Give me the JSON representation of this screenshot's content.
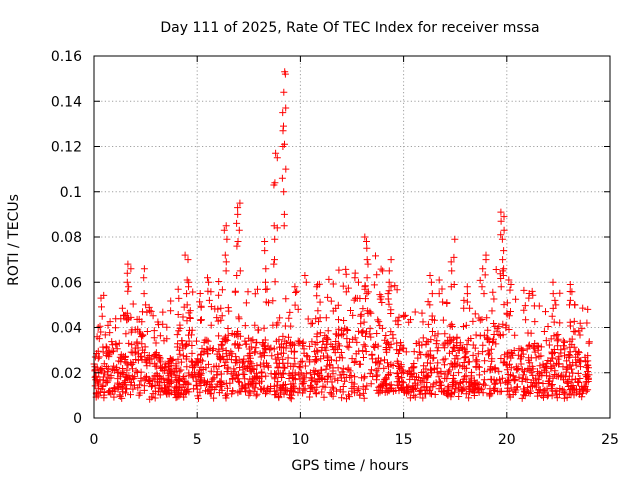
{
  "chart_data": {
    "type": "scatter",
    "title": "Day 111 of 2025, Rate Of TEC Index for receiver mssa",
    "xlabel": "GPS time / hours",
    "ylabel": "ROTI / TECUs",
    "xlim": [
      0,
      25
    ],
    "ylim": [
      0,
      0.16
    ],
    "x_ticks": [
      0,
      5,
      10,
      15,
      20,
      25
    ],
    "x_tick_labels": [
      "0",
      "5",
      "10",
      "15",
      "20",
      "25"
    ],
    "y_ticks": [
      0,
      0.02,
      0.04,
      0.06,
      0.08,
      0.1,
      0.12,
      0.14,
      0.16
    ],
    "y_tick_labels": [
      "0",
      "0.02",
      "0.04",
      "0.06",
      "0.08",
      "0.1",
      "0.12",
      "0.14",
      "0.16"
    ],
    "grid": true,
    "marker": "+",
    "color": "#ff0000",
    "series": [
      {
        "name": "ROTI",
        "x_range": [
          0,
          24
        ],
        "baseline_low": 0.008,
        "baseline_high": 0.03,
        "highlights": [
          {
            "x": 0.3,
            "values": [
              0.045,
              0.04,
              0.038
            ]
          },
          {
            "x": 0.4,
            "values": [
              0.053
            ]
          },
          {
            "x": 1.7,
            "values": [
              0.068,
              0.066,
              0.064,
              0.06,
              0.058,
              0.056
            ]
          },
          {
            "x": 2.4,
            "values": [
              0.066,
              0.062,
              0.055,
              0.05,
              0.047
            ]
          },
          {
            "x": 4.5,
            "values": [
              0.072,
              0.07,
              0.061,
              0.06,
              0.058,
              0.055,
              0.05
            ]
          },
          {
            "x": 5.5,
            "values": [
              0.062,
              0.06,
              0.056,
              0.052
            ]
          },
          {
            "x": 6.4,
            "values": [
              0.085,
              0.083,
              0.079,
              0.072,
              0.069,
              0.065
            ]
          },
          {
            "x": 7.0,
            "values": [
              0.095,
              0.093,
              0.09,
              0.086,
              0.083,
              0.078,
              0.076,
              0.065,
              0.063
            ]
          },
          {
            "x": 8.3,
            "values": [
              0.078,
              0.074,
              0.066,
              0.06,
              0.057
            ]
          },
          {
            "x": 8.8,
            "values": [
              0.117,
              0.115,
              0.104,
              0.103,
              0.085,
              0.084,
              0.079,
              0.07,
              0.068
            ]
          },
          {
            "x": 9.2,
            "values": [
              0.153,
              0.152,
              0.144,
              0.137,
              0.135,
              0.129,
              0.127,
              0.121,
              0.12,
              0.11,
              0.106,
              0.1,
              0.09,
              0.085
            ]
          },
          {
            "x": 9.8,
            "values": [
              0.058,
              0.056
            ]
          },
          {
            "x": 10.2,
            "values": [
              0.063,
              0.06
            ]
          },
          {
            "x": 10.7,
            "values": [
              0.058,
              0.054
            ]
          },
          {
            "x": 13.2,
            "values": [
              0.08,
              0.078,
              0.075,
              0.07,
              0.068,
              0.062,
              0.058,
              0.055
            ]
          },
          {
            "x": 14.3,
            "values": [
              0.07,
              0.065,
              0.06,
              0.058,
              0.055
            ]
          },
          {
            "x": 16.3,
            "values": [
              0.063,
              0.06,
              0.055,
              0.05
            ]
          },
          {
            "x": 16.8,
            "values": [
              0.061,
              0.057,
              0.055
            ]
          },
          {
            "x": 17.4,
            "values": [
              0.079,
              0.071,
              0.069,
              0.065,
              0.059
            ]
          },
          {
            "x": 18.0,
            "values": [
              0.058,
              0.055,
              0.052
            ]
          },
          {
            "x": 18.9,
            "values": [
              0.072,
              0.07,
              0.066,
              0.058,
              0.055
            ]
          },
          {
            "x": 19.8,
            "values": [
              0.091,
              0.089,
              0.087,
              0.083,
              0.081,
              0.079,
              0.074,
              0.07,
              0.066,
              0.065,
              0.063,
              0.058
            ]
          },
          {
            "x": 22.3,
            "values": [
              0.06,
              0.055,
              0.052,
              0.05,
              0.045
            ]
          },
          {
            "x": 23.1,
            "values": [
              0.059,
              0.052,
              0.05
            ]
          },
          {
            "x": 23.9,
            "values": [
              0.048,
              0.042
            ]
          }
        ]
      }
    ]
  }
}
